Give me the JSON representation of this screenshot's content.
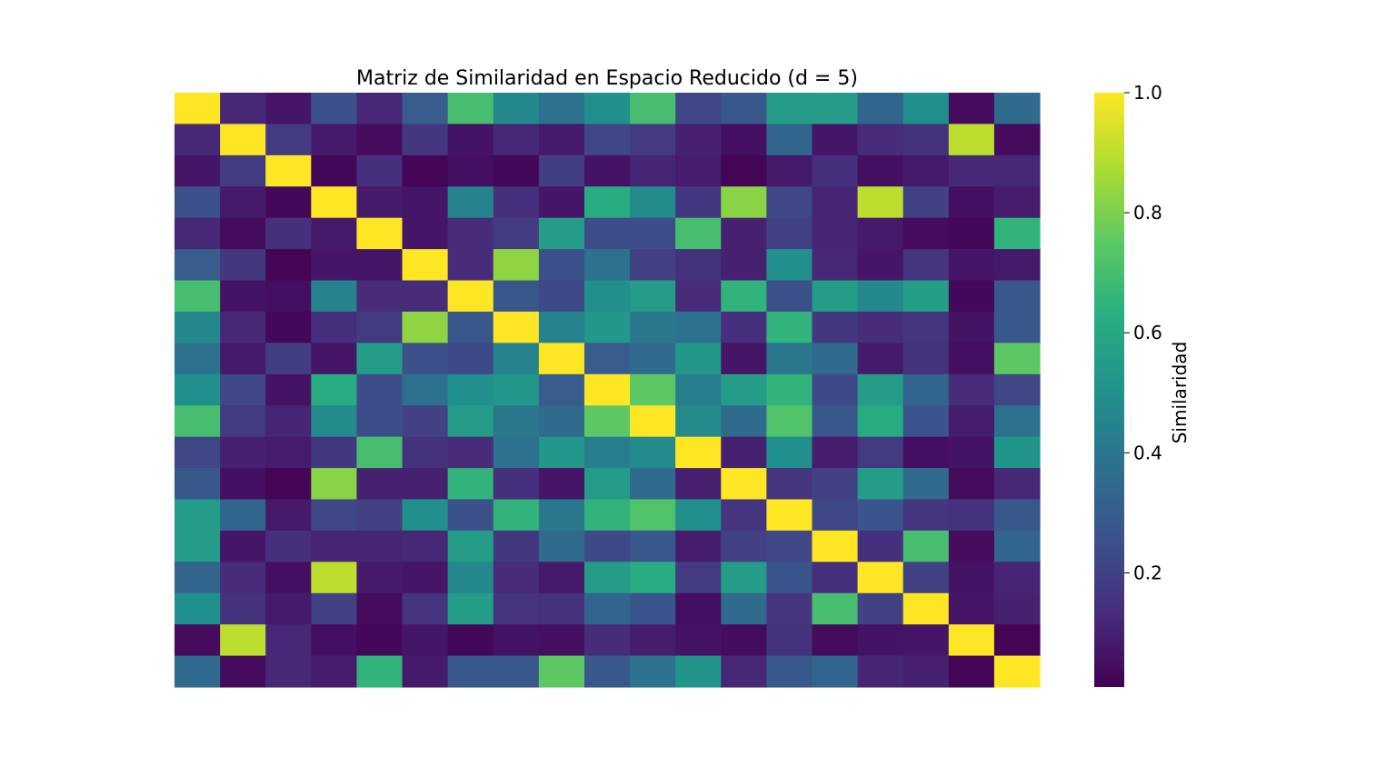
{
  "chart_data": {
    "type": "heatmap",
    "title": "Matriz de Similaridad en Espacio Reducido (d = 5)",
    "colorbar": {
      "label": "Similaridad",
      "ticks": [
        0.2,
        0.4,
        0.6,
        0.8,
        1.0
      ],
      "tick_labels": [
        "0.2",
        "0.4",
        "0.6",
        "0.8",
        "1.0"
      ],
      "range": [
        0.01,
        1.0
      ],
      "colormap": "viridis"
    },
    "xlabel": "",
    "ylabel": "",
    "show_tick_labels": false,
    "n_rows": 19,
    "n_cols": 19,
    "matrix": [
      [
        1.0,
        0.12,
        0.07,
        0.25,
        0.12,
        0.3,
        0.7,
        0.47,
        0.38,
        0.5,
        0.7,
        0.22,
        0.28,
        0.55,
        0.55,
        0.33,
        0.5,
        0.04,
        0.35
      ],
      [
        0.12,
        1.0,
        0.18,
        0.08,
        0.04,
        0.17,
        0.06,
        0.12,
        0.08,
        0.22,
        0.18,
        0.1,
        0.05,
        0.33,
        0.07,
        0.13,
        0.15,
        0.9,
        0.04
      ],
      [
        0.07,
        0.18,
        1.0,
        0.03,
        0.14,
        0.02,
        0.05,
        0.03,
        0.19,
        0.06,
        0.11,
        0.09,
        0.02,
        0.08,
        0.14,
        0.05,
        0.08,
        0.12,
        0.12
      ],
      [
        0.25,
        0.08,
        0.03,
        1.0,
        0.08,
        0.07,
        0.45,
        0.14,
        0.07,
        0.62,
        0.48,
        0.17,
        0.82,
        0.22,
        0.11,
        0.9,
        0.2,
        0.05,
        0.09
      ],
      [
        0.12,
        0.04,
        0.14,
        0.08,
        1.0,
        0.07,
        0.13,
        0.18,
        0.55,
        0.24,
        0.24,
        0.7,
        0.1,
        0.2,
        0.11,
        0.08,
        0.04,
        0.03,
        0.65
      ],
      [
        0.3,
        0.17,
        0.02,
        0.07,
        0.07,
        1.0,
        0.13,
        0.83,
        0.25,
        0.38,
        0.2,
        0.15,
        0.1,
        0.5,
        0.12,
        0.07,
        0.16,
        0.07,
        0.08
      ],
      [
        0.7,
        0.06,
        0.05,
        0.45,
        0.13,
        0.13,
        1.0,
        0.28,
        0.23,
        0.5,
        0.55,
        0.13,
        0.65,
        0.25,
        0.55,
        0.47,
        0.56,
        0.03,
        0.28
      ],
      [
        0.47,
        0.12,
        0.03,
        0.14,
        0.18,
        0.83,
        0.28,
        1.0,
        0.45,
        0.53,
        0.4,
        0.38,
        0.14,
        0.65,
        0.17,
        0.13,
        0.16,
        0.06,
        0.28
      ],
      [
        0.38,
        0.08,
        0.19,
        0.07,
        0.55,
        0.25,
        0.23,
        0.45,
        1.0,
        0.3,
        0.35,
        0.53,
        0.07,
        0.4,
        0.35,
        0.08,
        0.15,
        0.05,
        0.75
      ],
      [
        0.5,
        0.22,
        0.06,
        0.62,
        0.24,
        0.38,
        0.5,
        0.53,
        0.3,
        1.0,
        0.75,
        0.43,
        0.55,
        0.65,
        0.23,
        0.55,
        0.33,
        0.13,
        0.22
      ],
      [
        0.7,
        0.18,
        0.11,
        0.48,
        0.24,
        0.2,
        0.55,
        0.4,
        0.35,
        0.75,
        1.0,
        0.48,
        0.35,
        0.72,
        0.28,
        0.62,
        0.27,
        0.09,
        0.38
      ],
      [
        0.22,
        0.1,
        0.09,
        0.17,
        0.7,
        0.15,
        0.13,
        0.38,
        0.53,
        0.43,
        0.48,
        1.0,
        0.1,
        0.5,
        0.09,
        0.18,
        0.05,
        0.06,
        0.52
      ],
      [
        0.28,
        0.05,
        0.02,
        0.82,
        0.1,
        0.1,
        0.65,
        0.14,
        0.07,
        0.55,
        0.35,
        0.1,
        1.0,
        0.16,
        0.2,
        0.55,
        0.35,
        0.04,
        0.12
      ],
      [
        0.55,
        0.33,
        0.08,
        0.22,
        0.2,
        0.5,
        0.25,
        0.65,
        0.4,
        0.65,
        0.72,
        0.5,
        0.16,
        1.0,
        0.22,
        0.27,
        0.16,
        0.15,
        0.28
      ],
      [
        0.55,
        0.07,
        0.14,
        0.11,
        0.11,
        0.12,
        0.55,
        0.17,
        0.35,
        0.23,
        0.28,
        0.09,
        0.2,
        0.22,
        1.0,
        0.14,
        0.7,
        0.04,
        0.33
      ],
      [
        0.33,
        0.13,
        0.05,
        0.9,
        0.08,
        0.07,
        0.47,
        0.13,
        0.08,
        0.55,
        0.62,
        0.18,
        0.55,
        0.27,
        0.14,
        1.0,
        0.2,
        0.06,
        0.11
      ],
      [
        0.5,
        0.15,
        0.08,
        0.2,
        0.04,
        0.16,
        0.56,
        0.16,
        0.15,
        0.33,
        0.27,
        0.05,
        0.35,
        0.16,
        0.7,
        0.2,
        1.0,
        0.07,
        0.1
      ],
      [
        0.04,
        0.9,
        0.12,
        0.05,
        0.03,
        0.07,
        0.03,
        0.06,
        0.05,
        0.13,
        0.09,
        0.06,
        0.04,
        0.15,
        0.04,
        0.06,
        0.07,
        1.0,
        0.02
      ],
      [
        0.35,
        0.04,
        0.12,
        0.09,
        0.65,
        0.08,
        0.28,
        0.28,
        0.75,
        0.28,
        0.38,
        0.52,
        0.12,
        0.28,
        0.33,
        0.11,
        0.1,
        0.02,
        1.0
      ]
    ]
  }
}
